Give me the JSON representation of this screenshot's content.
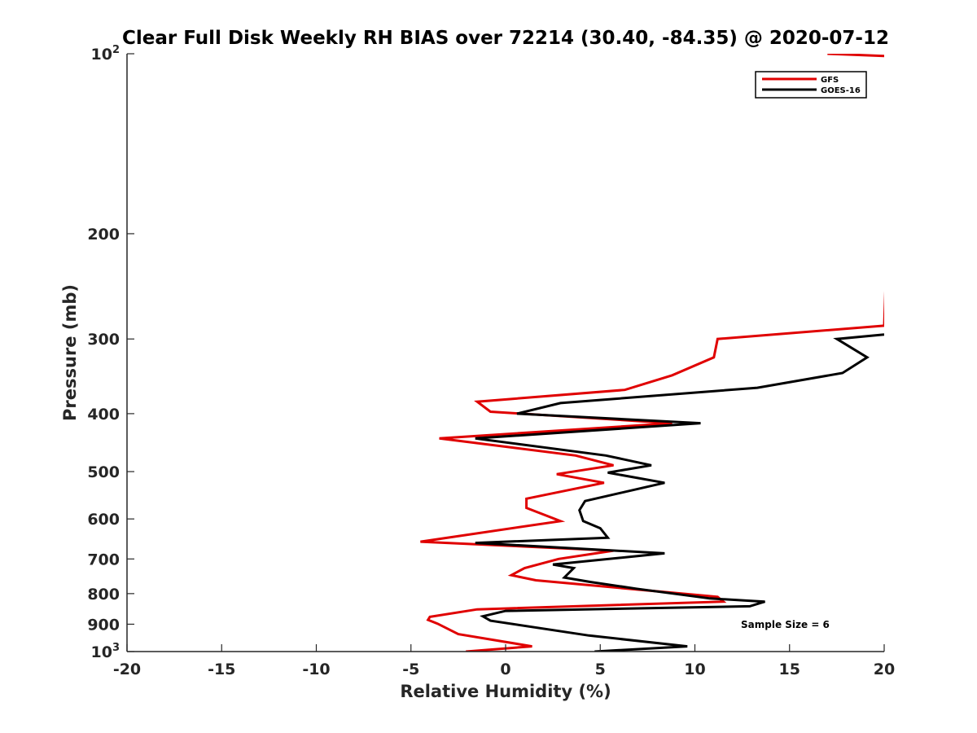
{
  "chart_data": {
    "type": "line",
    "title": "Clear Full Disk Weekly RH BIAS over 72214 (30.40, -84.35) @ 2020-07-12",
    "xlabel": "Relative Humidity (%)",
    "ylabel": "Pressure (mb)",
    "xlim": [
      -20,
      20
    ],
    "ylim": [
      100,
      1000
    ],
    "yscale": "log",
    "y_reversed": true,
    "x_ticks": [
      "-20",
      "-15",
      "-10",
      "-5",
      "0",
      "5",
      "10",
      "15",
      "20"
    ],
    "x_tick_values": [
      -20,
      -15,
      -10,
      -5,
      0,
      5,
      10,
      15,
      20
    ],
    "y_ticks": [
      {
        "value": 100,
        "base": "10",
        "exp": "2"
      },
      {
        "value": 200,
        "label": "200"
      },
      {
        "value": 300,
        "label": "300"
      },
      {
        "value": 400,
        "label": "400"
      },
      {
        "value": 500,
        "label": "500"
      },
      {
        "value": 600,
        "label": "600"
      },
      {
        "value": 700,
        "label": "700"
      },
      {
        "value": 800,
        "label": "800"
      },
      {
        "value": 900,
        "label": "900"
      },
      {
        "value": 1000,
        "base": "10",
        "exp": "3"
      }
    ],
    "legend": {
      "position": "top-right"
    },
    "series": [
      {
        "name": "GFS",
        "color": "#e00000",
        "x": [
          17,
          20.5,
          20,
          11.2,
          11,
          8.8,
          6.3,
          -1.5,
          -0.8,
          8.8,
          -3.5,
          3.7,
          5.7,
          2.7,
          5.2,
          1.1,
          1.1,
          2.9,
          -4.5,
          5.7,
          2.8,
          1,
          0.3,
          1.6,
          11.2,
          11.5,
          -1.5,
          -4,
          -4.1,
          -3.6,
          -2.5,
          1.4,
          -2.1
        ],
        "y": [
          100,
          101,
          285,
          300,
          322,
          345,
          365,
          382,
          397,
          415,
          440,
          470,
          488,
          505,
          522,
          555,
          575,
          605,
          655,
          678,
          700,
          725,
          745,
          760,
          810,
          825,
          850,
          875,
          885,
          898,
          935,
          980,
          1000
        ]
      },
      {
        "name": "GOES-16",
        "color": "#000000",
        "x": [
          20,
          17.5,
          19.1,
          17.8,
          13.3,
          2.9,
          0.6,
          10.3,
          -1.6,
          5.3,
          7.7,
          5.4,
          8.4,
          4.2,
          3.9,
          4.1,
          5,
          5.4,
          -1.6,
          8.4,
          2.5,
          3.6,
          3.1,
          4.5,
          6.9,
          10.8,
          13.7,
          12.9,
          0,
          -1.2,
          -0.8,
          4.4,
          9.6,
          4.7
        ],
        "y": [
          295,
          300,
          322,
          342,
          362,
          384,
          400,
          415,
          440,
          470,
          488,
          502,
          522,
          560,
          580,
          605,
          622,
          645,
          658,
          685,
          715,
          725,
          752,
          765,
          785,
          815,
          825,
          840,
          855,
          873,
          888,
          940,
          980,
          1000
        ]
      }
    ],
    "annotations": [
      "Sample Size = 6"
    ]
  }
}
